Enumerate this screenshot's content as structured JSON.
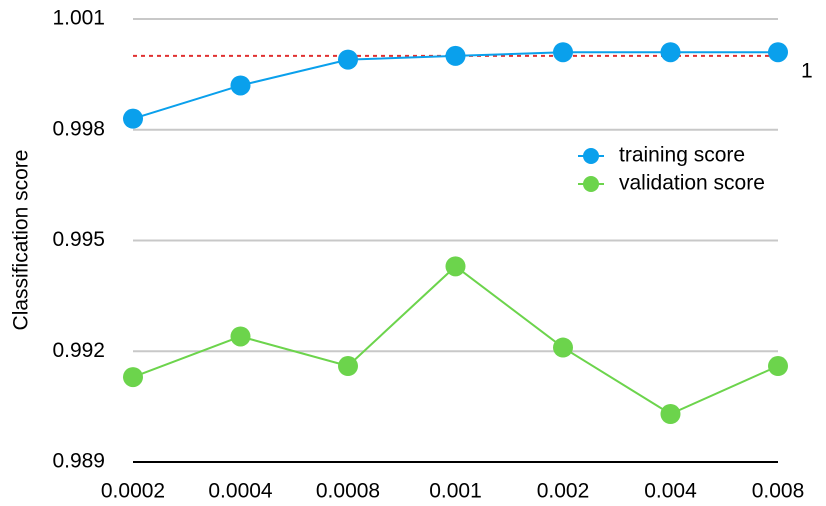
{
  "chart_data": {
    "type": "line",
    "title": "",
    "xlabel": "",
    "ylabel": "Classification score",
    "categories": [
      "0.0002",
      "0.0004",
      "0.0008",
      "0.001",
      "0.002",
      "0.004",
      "0.008"
    ],
    "y_ticks": [
      "0.989",
      "0.992",
      "0.995",
      "0.998",
      "1.001"
    ],
    "ylim": [
      0.989,
      1.001
    ],
    "grid": true,
    "legend_position": "right",
    "reference_line": {
      "value": 1.0,
      "label": "1",
      "color": "#e03030",
      "style": "dotted"
    },
    "series": [
      {
        "name": "training score",
        "color": "#0aa0ec",
        "values": [
          0.9983,
          0.9992,
          0.9999,
          1.0,
          1.0001,
          1.0001,
          1.0001
        ]
      },
      {
        "name": "validation score",
        "color": "#6cd44c",
        "values": [
          0.9913,
          0.9924,
          0.9916,
          0.9943,
          0.9921,
          0.9903,
          0.9916
        ]
      }
    ]
  }
}
